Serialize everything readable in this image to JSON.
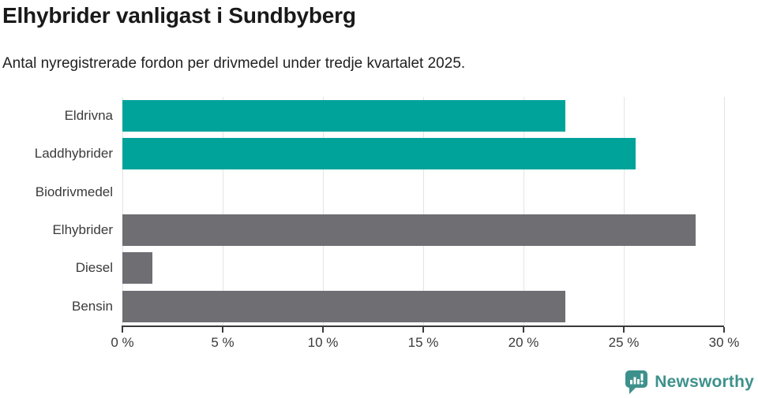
{
  "header": {
    "title": "Elhybrider vanligast i Sundbyberg",
    "subtitle": "Antal nyregistrerade fordon per drivmedel under tredje kvartalet 2025."
  },
  "chart_data": {
    "type": "bar",
    "orientation": "horizontal",
    "title": "Elhybrider vanligast i Sundbyberg",
    "subtitle": "Antal nyregistrerade fordon per drivmedel under tredje kvartalet 2025.",
    "categories": [
      "Eldrivna",
      "Laddhybrider",
      "Biodrivmedel",
      "Elhybrider",
      "Diesel",
      "Bensin"
    ],
    "values": [
      22.1,
      25.6,
      0,
      28.6,
      1.5,
      22.1
    ],
    "value_unit": "%",
    "xlim": [
      0,
      30
    ],
    "xticks": [
      0,
      5,
      10,
      15,
      20,
      25,
      30
    ],
    "xtick_labels": [
      "0 %",
      "5 %",
      "10 %",
      "15 %",
      "20 %",
      "25 %",
      "30 %"
    ],
    "grid": true,
    "legend": false,
    "bar_colors": [
      "#00a39a",
      "#00a39a",
      "#6e6e73",
      "#6e6e73",
      "#6e6e73",
      "#6e6e73"
    ],
    "colors": {
      "highlight": "#00a39a",
      "default": "#6e6e73",
      "axis": "#3a3a3a",
      "gridline": "#e4e4e4"
    }
  },
  "footer": {
    "brand": "Newsworthy",
    "brand_color": "#3d918c",
    "logo_icon": "speech-bubble-bar-chart-icon"
  }
}
